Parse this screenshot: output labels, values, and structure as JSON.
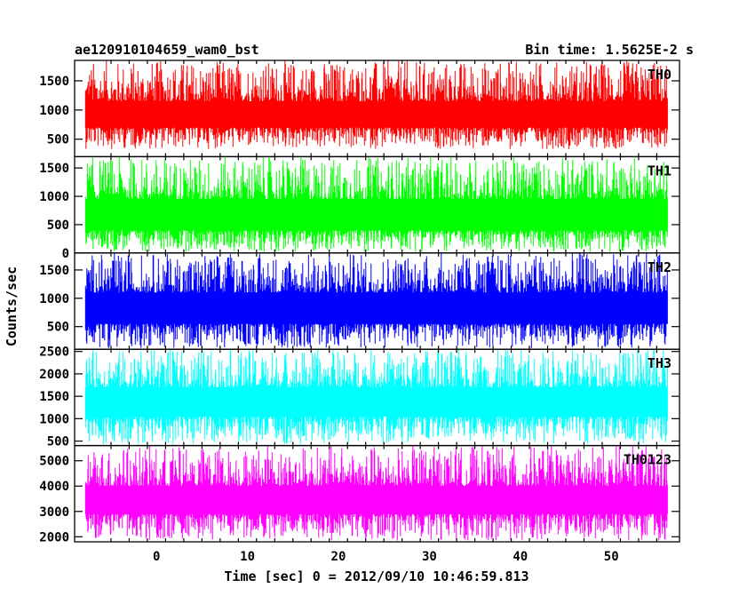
{
  "chart_data": {
    "type": "line",
    "title": "ae120910104659_wam0_bst",
    "bin_time_label": "Bin time: 1.5625E-2 s",
    "xlabel": "Time [sec] 0 = 2012/09/10 10:46:59.813",
    "ylabel": "Counts/sec",
    "xlim": [
      -9.0,
      57.5
    ],
    "data_range": [
      -7.8,
      56.2
    ],
    "x_ticks": [
      0,
      10,
      20,
      30,
      40,
      50
    ],
    "x_tick_labels": [
      "0",
      "10",
      "20",
      "30",
      "40",
      "50"
    ],
    "grid": false,
    "panels": [
      {
        "name": "TH0",
        "color": "#ff0000",
        "ylim": [
          200,
          1850
        ],
        "y_ticks": [
          500,
          1000,
          1500
        ],
        "y_tick_labels": [
          "500",
          "1000",
          "1500"
        ],
        "typical_low": 700,
        "typical_high": 1150,
        "envelope_min": 330,
        "envelope_max": 1850
      },
      {
        "name": "TH1",
        "color": "#00ff00",
        "ylim": [
          0,
          1700
        ],
        "y_ticks": [
          0,
          500,
          1000,
          1500
        ],
        "y_tick_labels": [
          "0",
          "500",
          "1000",
          "1500"
        ],
        "typical_low": 400,
        "typical_high": 950,
        "envelope_min": 20,
        "envelope_max": 1700
      },
      {
        "name": "TH2",
        "color": "#0000ff",
        "ylim": [
          100,
          1800
        ],
        "y_ticks": [
          500,
          1000,
          1500
        ],
        "y_tick_labels": [
          "500",
          "1000",
          "1500"
        ],
        "typical_low": 550,
        "typical_high": 1100,
        "envelope_min": 120,
        "envelope_max": 1800
      },
      {
        "name": "TH3",
        "color": "#00ffff",
        "ylim": [
          400,
          2550
        ],
        "y_ticks": [
          500,
          1000,
          1500,
          2000,
          2500
        ],
        "y_tick_labels": [
          "500",
          "1000",
          "1500",
          "2000",
          "2500"
        ],
        "typical_low": 1050,
        "typical_high": 1700,
        "envelope_min": 430,
        "envelope_max": 2550
      },
      {
        "name": "TH0123",
        "color": "#ff00ff",
        "ylim": [
          1800,
          5600
        ],
        "y_ticks": [
          2000,
          3000,
          4000,
          5000
        ],
        "y_tick_labels": [
          "2000",
          "3000",
          "4000",
          "5000"
        ],
        "typical_low": 2900,
        "typical_high": 4000,
        "envelope_min": 1850,
        "envelope_max": 5600
      }
    ]
  }
}
